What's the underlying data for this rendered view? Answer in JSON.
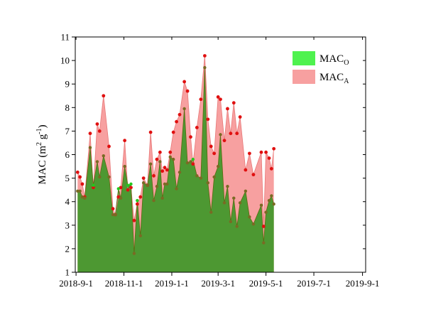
{
  "chart_data": {
    "type": "area",
    "ylabel": "MAC (m² g⁻¹)",
    "ylabel_parts": {
      "main": "MAC (m",
      "sup1": "2",
      "mid": " g",
      "sup2": "-1",
      "end": ")"
    },
    "xlabel": "",
    "ylim": [
      1,
      11
    ],
    "xlim": [
      "2018-08-31",
      "2019-09-05"
    ],
    "yticks": [
      1,
      2,
      3,
      4,
      5,
      6,
      7,
      8,
      9,
      10,
      11
    ],
    "xticks": [
      {
        "date": "2018-09-01",
        "label": "2018-9-1"
      },
      {
        "date": "2018-11-01",
        "label": "2018-11-1"
      },
      {
        "date": "2019-01-01",
        "label": "2019-1-1"
      },
      {
        "date": "2019-03-01",
        "label": "2019-3-1"
      },
      {
        "date": "2019-05-01",
        "label": "2019-5-1"
      },
      {
        "date": "2019-07-01",
        "label": "2019-7-1"
      },
      {
        "date": "2019-09-01",
        "label": "2019-9-1"
      }
    ],
    "legend": {
      "placement": "top-right"
    },
    "series": [
      {
        "name": "MAC_A",
        "legend_main": "MAC",
        "legend_sub": "A",
        "fill_color": "#f7a0a0",
        "marker_color": "#e01010",
        "points": [
          [
            "2018-09-03",
            5.25
          ],
          [
            "2018-09-06",
            5.05
          ],
          [
            "2018-09-09",
            4.75
          ],
          [
            "2018-09-12",
            4.2
          ],
          [
            "2018-09-19",
            6.9
          ],
          [
            "2018-09-23",
            4.6
          ],
          [
            "2018-09-28",
            7.3
          ],
          [
            "2018-10-01",
            7.0
          ],
          [
            "2018-10-06",
            8.5
          ],
          [
            "2018-10-13",
            6.35
          ],
          [
            "2018-10-18",
            3.7
          ],
          [
            "2018-10-21",
            3.45
          ],
          [
            "2018-10-25",
            4.2
          ],
          [
            "2018-10-28",
            4.6
          ],
          [
            "2018-11-02",
            6.6
          ],
          [
            "2018-11-06",
            4.5
          ],
          [
            "2018-11-10",
            4.6
          ],
          [
            "2018-11-14",
            3.2
          ],
          [
            "2018-11-18",
            3.9
          ],
          [
            "2018-11-22",
            4.2
          ],
          [
            "2018-11-26",
            5.0
          ],
          [
            "2018-12-01",
            4.7
          ],
          [
            "2018-12-05",
            6.95
          ],
          [
            "2018-12-09",
            5.1
          ],
          [
            "2018-12-13",
            5.8
          ],
          [
            "2018-12-17",
            6.1
          ],
          [
            "2018-12-20",
            5.3
          ],
          [
            "2018-12-23",
            5.45
          ],
          [
            "2018-12-26",
            5.35
          ],
          [
            "2018-12-30",
            6.1
          ],
          [
            "2019-01-03",
            6.95
          ],
          [
            "2019-01-07",
            7.4
          ],
          [
            "2019-01-11",
            7.7
          ],
          [
            "2019-01-17",
            9.1
          ],
          [
            "2019-01-21",
            8.7
          ],
          [
            "2019-01-25",
            6.75
          ],
          [
            "2019-01-28",
            5.6
          ],
          [
            "2019-02-02",
            7.15
          ],
          [
            "2019-02-07",
            8.35
          ],
          [
            "2019-02-12",
            10.2
          ],
          [
            "2019-02-16",
            7.5
          ],
          [
            "2019-02-20",
            6.35
          ],
          [
            "2019-02-24",
            6.05
          ],
          [
            "2019-03-01",
            8.45
          ],
          [
            "2019-03-04",
            8.35
          ],
          [
            "2019-03-09",
            6.6
          ],
          [
            "2019-03-13",
            7.95
          ],
          [
            "2019-03-17",
            6.9
          ],
          [
            "2019-03-21",
            8.2
          ],
          [
            "2019-03-25",
            6.9
          ],
          [
            "2019-03-29",
            7.6
          ],
          [
            "2019-04-05",
            5.35
          ],
          [
            "2019-04-10",
            6.05
          ],
          [
            "2019-04-15",
            5.15
          ],
          [
            "2019-04-25",
            6.1
          ],
          [
            "2019-04-28",
            2.95
          ],
          [
            "2019-05-01",
            6.1
          ],
          [
            "2019-05-05",
            5.85
          ],
          [
            "2019-05-08",
            5.4
          ],
          [
            "2019-05-11",
            6.25
          ]
        ]
      },
      {
        "name": "MAC_O",
        "legend_main": "MAC",
        "legend_sub": "O",
        "fill_color": "#4ff24f",
        "marker_color": "#22c81e",
        "points": [
          [
            "2018-09-03",
            4.45
          ],
          [
            "2018-09-06",
            4.45
          ],
          [
            "2018-09-09",
            4.2
          ],
          [
            "2018-09-12",
            4.15
          ],
          [
            "2018-09-19",
            6.3
          ],
          [
            "2018-09-23",
            4.7
          ],
          [
            "2018-09-28",
            5.7
          ],
          [
            "2018-10-01",
            5.05
          ],
          [
            "2018-10-06",
            5.95
          ],
          [
            "2018-10-13",
            5.05
          ],
          [
            "2018-10-18",
            3.45
          ],
          [
            "2018-10-21",
            3.45
          ],
          [
            "2018-10-25",
            4.55
          ],
          [
            "2018-10-28",
            4.15
          ],
          [
            "2018-11-02",
            5.5
          ],
          [
            "2018-11-06",
            4.7
          ],
          [
            "2018-11-10",
            4.75
          ],
          [
            "2018-11-14",
            1.8
          ],
          [
            "2018-11-18",
            4.05
          ],
          [
            "2018-11-22",
            2.55
          ],
          [
            "2018-11-26",
            4.8
          ],
          [
            "2018-12-01",
            4.7
          ],
          [
            "2018-12-05",
            5.6
          ],
          [
            "2018-12-09",
            4.05
          ],
          [
            "2018-12-13",
            4.65
          ],
          [
            "2018-12-17",
            5.7
          ],
          [
            "2018-12-20",
            4.15
          ],
          [
            "2018-12-23",
            4.75
          ],
          [
            "2018-12-26",
            4.75
          ],
          [
            "2018-12-30",
            5.9
          ],
          [
            "2019-01-03",
            5.8
          ],
          [
            "2019-01-07",
            4.55
          ],
          [
            "2019-01-11",
            5.25
          ],
          [
            "2019-01-17",
            7.95
          ],
          [
            "2019-01-21",
            5.65
          ],
          [
            "2019-01-25",
            5.7
          ],
          [
            "2019-01-28",
            5.8
          ],
          [
            "2019-02-02",
            5.1
          ],
          [
            "2019-02-07",
            5.0
          ],
          [
            "2019-02-12",
            9.7
          ],
          [
            "2019-02-16",
            4.8
          ],
          [
            "2019-02-20",
            3.55
          ],
          [
            "2019-02-24",
            5.05
          ],
          [
            "2019-03-01",
            5.5
          ],
          [
            "2019-03-04",
            6.85
          ],
          [
            "2019-03-09",
            3.95
          ],
          [
            "2019-03-13",
            4.65
          ],
          [
            "2019-03-17",
            3.15
          ],
          [
            "2019-03-21",
            4.15
          ],
          [
            "2019-03-25",
            2.95
          ],
          [
            "2019-03-29",
            3.95
          ],
          [
            "2019-04-05",
            4.45
          ],
          [
            "2019-04-10",
            3.35
          ],
          [
            "2019-04-15",
            3.05
          ],
          [
            "2019-04-25",
            3.85
          ],
          [
            "2019-04-28",
            2.25
          ],
          [
            "2019-05-01",
            3.55
          ],
          [
            "2019-05-05",
            4.05
          ],
          [
            "2019-05-08",
            4.25
          ],
          [
            "2019-05-11",
            3.9
          ]
        ]
      }
    ]
  }
}
